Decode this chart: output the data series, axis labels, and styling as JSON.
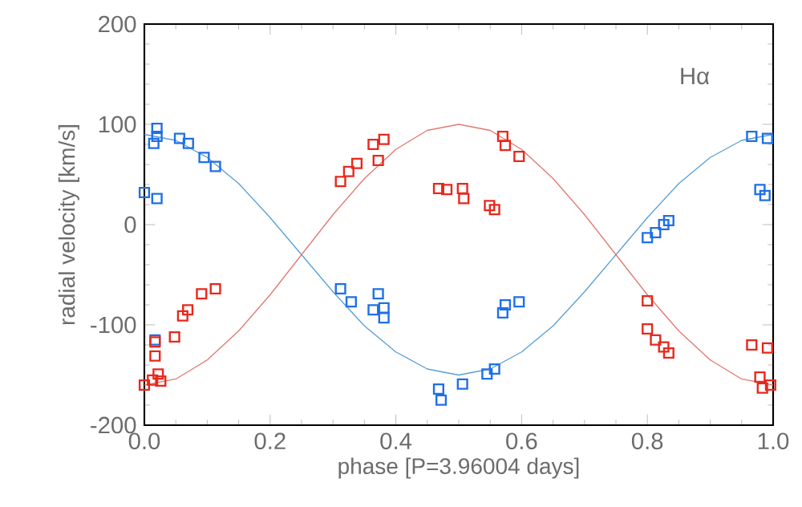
{
  "chart_data": {
    "type": "scatter",
    "xlabel": "phase [P=3.96004 days]",
    "ylabel": "radial velocity [km/s]",
    "annotations": [
      "Hα"
    ],
    "xlim": [
      0,
      1
    ],
    "ylim": [
      -200,
      200
    ],
    "xticks": [
      {
        "value": 0,
        "label": "0.0"
      },
      {
        "value": 0.2,
        "label": "0.2"
      },
      {
        "value": 0.4,
        "label": "0.4"
      },
      {
        "value": 0.6,
        "label": "0.6"
      },
      {
        "value": 0.8,
        "label": "0.8"
      },
      {
        "value": 1,
        "label": "1.0"
      }
    ],
    "yticks": [
      -200,
      -100,
      0,
      100,
      200
    ],
    "grid": false,
    "marker": "square",
    "series": [
      {
        "color": "#1f6fe8",
        "x": [
          0.0,
          0.02,
          0.02,
          0.015,
          0.02,
          0.056,
          0.07,
          0.095,
          0.113,
          0.017,
          0.312,
          0.329,
          0.364,
          0.381,
          0.372,
          0.381,
          0.468,
          0.472,
          0.506,
          0.545,
          0.557,
          0.57,
          0.574,
          0.596,
          0.8,
          0.813,
          0.826,
          0.834,
          0.966,
          0.991,
          0.979,
          0.987
        ],
        "values": [
          32,
          26,
          96,
          81,
          88,
          86,
          81,
          67,
          58,
          -115,
          -64,
          -77,
          -85,
          -83,
          -69,
          -93,
          -164,
          -175,
          -159,
          -149,
          -144,
          -88,
          -80,
          -77,
          -13,
          -8,
          0,
          4,
          88,
          86,
          35,
          29
        ]
      },
      {
        "color": "#e8281c",
        "x": [
          0.0,
          0.013,
          0.022,
          0.026,
          0.017,
          0.017,
          0.048,
          0.061,
          0.069,
          0.091,
          0.113,
          0.312,
          0.325,
          0.338,
          0.364,
          0.381,
          0.372,
          0.468,
          0.481,
          0.506,
          0.508,
          0.549,
          0.557,
          0.57,
          0.574,
          0.596,
          0.8,
          0.8,
          0.813,
          0.826,
          0.834,
          0.966,
          0.991,
          0.979,
          0.983,
          0.996
        ],
        "values": [
          -160,
          -155,
          -149,
          -156,
          -131,
          -117,
          -112,
          -91,
          -85,
          -69,
          -64,
          43,
          53,
          61,
          80,
          85,
          64,
          36,
          35,
          36,
          26,
          19,
          15,
          88,
          79,
          68,
          -76,
          -104,
          -115,
          -122,
          -128,
          -120,
          -123,
          -152,
          -163,
          -160
        ]
      },
      {
        "type": "line",
        "color": "#5a9fd6",
        "marker": "none",
        "x": [
          0,
          0.05,
          0.1,
          0.15,
          0.2,
          0.25,
          0.3,
          0.35,
          0.4,
          0.45,
          0.5,
          0.55,
          0.6,
          0.65,
          0.7,
          0.75,
          0.8,
          0.85,
          0.9,
          0.95,
          1
        ],
        "values": [
          90,
          84,
          67,
          41,
          7,
          -30,
          -67,
          -101,
          -127,
          -144,
          -150,
          -144,
          -127,
          -101,
          -67,
          -30,
          7,
          41,
          67,
          84,
          90
        ]
      },
      {
        "type": "line",
        "color": "#e07a70",
        "marker": "none",
        "x": [
          0,
          0.05,
          0.1,
          0.15,
          0.2,
          0.25,
          0.3,
          0.35,
          0.4,
          0.45,
          0.5,
          0.55,
          0.6,
          0.65,
          0.7,
          0.75,
          0.8,
          0.85,
          0.9,
          0.95,
          1
        ],
        "values": [
          -160,
          -154,
          -135,
          -106,
          -70,
          -30,
          10,
          46,
          75,
          94,
          100,
          94,
          75,
          46,
          10,
          -30,
          -70,
          -106,
          -135,
          -154,
          -160
        ]
      }
    ]
  }
}
